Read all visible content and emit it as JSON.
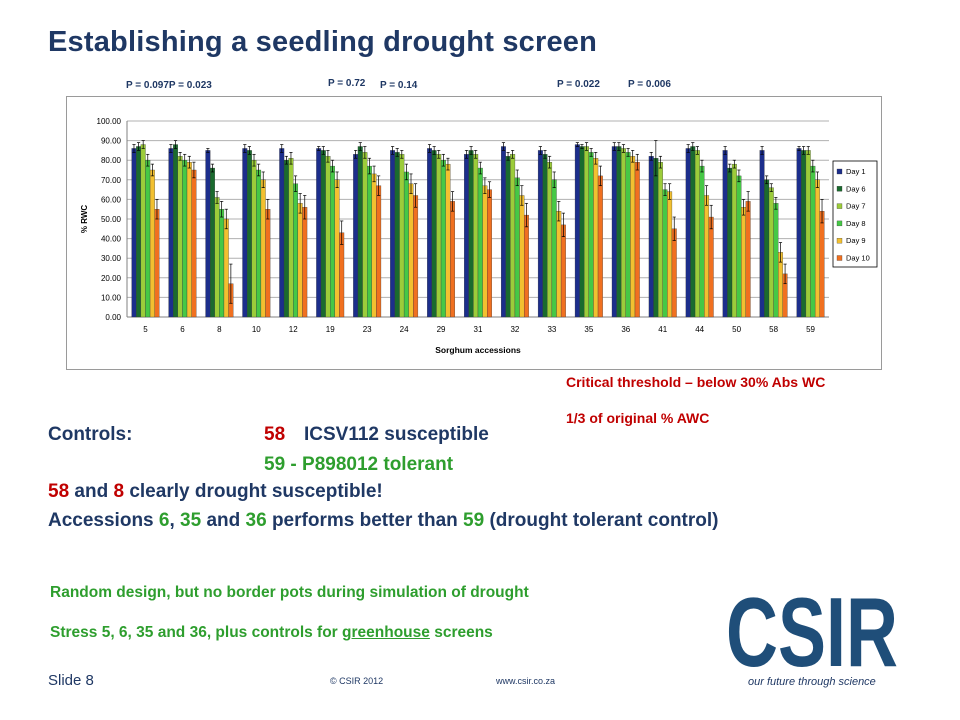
{
  "slide": {
    "title": "Establishing a seedling drought screen",
    "p_values": [
      "P = 0.097P = 0.023",
      "P = 0.72",
      "P = 0.14",
      "P = 0.022",
      "P = 0.006"
    ],
    "critical_line1": "Critical threshold – below 30% Abs WC",
    "critical_line2": "1/3 of original % AWC",
    "controls_label": "Controls:",
    "controls_1_num": "58",
    "controls_1_text": "ICSV112 susceptible",
    "controls_2": "59 - P898012 tolerant",
    "line3_a": "58",
    "line3_b": " and ",
    "line3_c": "8",
    "line3_d": " clearly drought susceptible!",
    "line4_a": "Accessions ",
    "line4_b": "6",
    "line4_c": ", ",
    "line4_d": "35",
    "line4_e": " and ",
    "line4_f": "36",
    "line4_g": " performs better than ",
    "line4_h": "59",
    "line4_i": " (drought tolerant control)",
    "note1": "Random design, but no border pots during simulation of drought",
    "note2_pre": "Stress 5, 6, 35 and 36, plus controls for ",
    "note2_link": "greenhouse",
    "note2_post": " screens",
    "slide_number": "Slide 8",
    "copyright": "© CSIR  2012",
    "website": "www.csir.co.za",
    "logo_text": "CSIR",
    "tagline": "our future through science"
  },
  "chart_data": {
    "type": "bar",
    "xlabel": "Sorghum accessions",
    "ylabel": "% RWC",
    "ylim": [
      0,
      100
    ],
    "yticks": [
      "0.00",
      "10.00",
      "20.00",
      "30.00",
      "40.00",
      "50.00",
      "60.00",
      "70.00",
      "80.00",
      "90.00",
      "100.00"
    ],
    "grid": true,
    "legend_position": "right",
    "categories": [
      "5",
      "6",
      "8",
      "10",
      "12",
      "19",
      "23",
      "24",
      "29",
      "31",
      "32",
      "33",
      "35",
      "36",
      "41",
      "44",
      "50",
      "58",
      "59"
    ],
    "series": [
      {
        "name": "Day 1",
        "color": "#1c2e8c",
        "values": [
          86,
          86,
          85,
          86,
          86,
          86,
          83,
          85,
          86,
          83,
          87,
          85,
          88,
          87,
          82,
          86,
          85,
          85,
          86
        ],
        "errors": [
          2,
          2,
          1,
          2,
          2,
          1,
          2,
          2,
          2,
          2,
          2,
          2,
          1,
          2,
          2,
          2,
          2,
          2,
          1
        ]
      },
      {
        "name": "Day 6",
        "color": "#1a6b2e",
        "values": [
          87,
          88,
          76,
          85,
          80,
          85,
          87,
          84,
          85,
          85,
          82,
          83,
          87,
          87,
          81,
          87,
          76,
          70,
          85
        ],
        "errors": [
          2,
          2,
          2,
          2,
          2,
          2,
          2,
          2,
          2,
          2,
          2,
          2,
          1,
          2,
          9,
          2,
          2,
          2,
          2
        ]
      },
      {
        "name": "Day 7",
        "color": "#9ccc3a",
        "values": [
          88,
          82,
          61,
          80,
          81,
          82,
          84,
          83,
          83,
          83,
          83,
          79,
          87,
          86,
          79,
          85,
          78,
          66,
          85
        ],
        "errors": [
          2,
          2,
          3,
          3,
          3,
          3,
          3,
          2,
          2,
          2,
          2,
          3,
          2,
          2,
          3,
          2,
          2,
          2,
          2
        ]
      },
      {
        "name": "Day 8",
        "color": "#46c846",
        "values": [
          80,
          80,
          55,
          75,
          68,
          77,
          77,
          74,
          80,
          76,
          71,
          70,
          84,
          84,
          65,
          77,
          72,
          58,
          77
        ],
        "errors": [
          3,
          3,
          4,
          3,
          4,
          3,
          4,
          4,
          3,
          3,
          4,
          4,
          2,
          2,
          3,
          3,
          3,
          3,
          3
        ]
      },
      {
        "name": "Day 9",
        "color": "#f2c030",
        "values": [
          75,
          79,
          50,
          70,
          58,
          70,
          73,
          68,
          78,
          67,
          62,
          54,
          81,
          82,
          64,
          62,
          56,
          33,
          70
        ],
        "errors": [
          3,
          3,
          5,
          4,
          5,
          4,
          4,
          5,
          3,
          4,
          5,
          5,
          3,
          3,
          4,
          5,
          4,
          5,
          4
        ]
      },
      {
        "name": "Day 10",
        "color": "#f07020",
        "values": [
          55,
          75,
          17,
          55,
          56,
          43,
          67,
          62,
          59,
          65,
          52,
          47,
          72,
          79,
          45,
          51,
          59,
          22,
          54
        ],
        "errors": [
          5,
          4,
          10,
          5,
          6,
          6,
          5,
          6,
          5,
          4,
          6,
          6,
          5,
          4,
          6,
          6,
          5,
          5,
          6
        ]
      }
    ]
  }
}
